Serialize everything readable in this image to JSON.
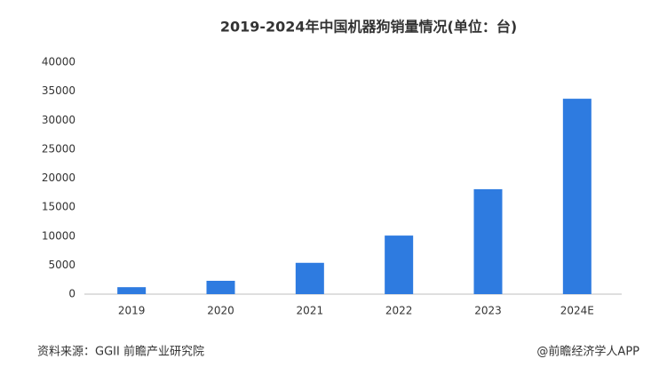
{
  "chart_data": {
    "type": "bar",
    "title": "2019-2024年中国机器狗销量情况(单位：台)",
    "categories": [
      "2019",
      "2020",
      "2021",
      "2022",
      "2023",
      "2024E"
    ],
    "values": [
      1200,
      2300,
      5400,
      10100,
      18100,
      33700
    ],
    "color": "#2e7be0",
    "ylim": [
      0,
      40000
    ],
    "yticks": [
      0,
      5000,
      10000,
      15000,
      20000,
      25000,
      30000,
      35000,
      40000
    ],
    "grid": false,
    "source": "资料来源：GGII 前瞻产业研究院",
    "credit": "@前瞻经济学人APP"
  }
}
